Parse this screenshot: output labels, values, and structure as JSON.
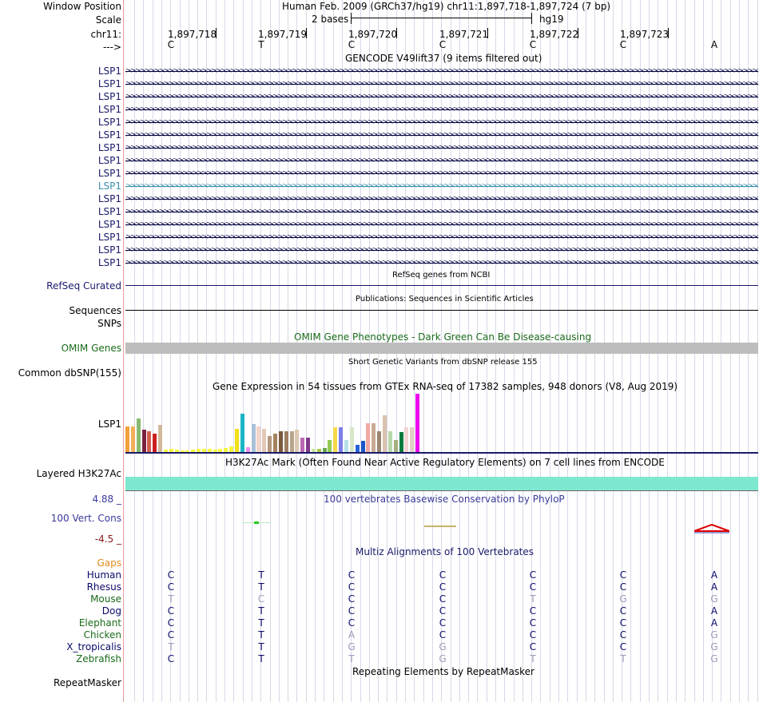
{
  "header": {
    "window_position_label": "Window Position",
    "assembly_text": "Human Feb. 2009 (GRCh37/hg19)   chr11:1,897,718-1,897,724 (7 bp)",
    "scale_label": "Scale",
    "scale_text": "2 bases",
    "scale_db": "hg19",
    "chrom_label": "chr11:",
    "coords": [
      "1,897,718",
      "1,897,719",
      "1,897,720",
      "1,897,721",
      "1,897,722",
      "1,897,723"
    ],
    "strand_label": "--->",
    "bases": [
      "C",
      "T",
      "C",
      "C",
      "C",
      "C",
      "A"
    ]
  },
  "gencode": {
    "title": "GENCODE V49lift37 (9 items filtered out)",
    "rows": [
      "LSP1",
      "LSP1",
      "LSP1",
      "LSP1",
      "LSP1",
      "LSP1",
      "LSP1",
      "LSP1",
      "LSP1",
      "LSP1",
      "LSP1",
      "LSP1",
      "LSP1",
      "LSP1",
      "LSP1",
      "LSP1"
    ],
    "highlight_index": 9,
    "highlight_color": "#3a8fb0"
  },
  "refseq": {
    "title": "RefSeq genes from NCBI",
    "label": "RefSeq Curated"
  },
  "publications": {
    "title": "Publications: Sequences in Scientific Articles",
    "label1": "Sequences",
    "label2": "SNPs"
  },
  "omim": {
    "title": "OMIM Gene Phenotypes - Dark Green Can Be Disease-causing",
    "label": "OMIM Genes",
    "color": "#1a6b1a"
  },
  "dbsnp": {
    "title": "Short Genetic Variants from dbSNP release 155",
    "label": "Common dbSNP(155)"
  },
  "gtex": {
    "title": "Gene Expression in 54 tissues from GTEx RNA-seq of 17382 samples, 948 donors (V8, Aug 2019)",
    "label": "LSP1",
    "values": [
      44,
      44,
      57,
      38,
      36,
      32,
      47,
      4,
      5,
      4,
      3,
      3,
      4,
      5,
      5,
      5,
      4,
      6,
      7,
      9,
      40,
      66,
      8,
      48,
      44,
      40,
      27,
      32,
      36,
      36,
      36,
      38,
      25,
      24,
      5,
      5,
      7,
      20,
      42,
      42,
      21,
      43,
      12,
      19,
      49,
      49,
      35,
      63,
      35,
      21,
      34,
      42,
      42,
      100
    ],
    "colors": [
      "#f3a13a",
      "#f2b05a",
      "#8ab971",
      "#7a2340",
      "#d25f4f",
      "#cc1f1f",
      "#d2b99c",
      "#f5f542",
      "#f5f542",
      "#f5f542",
      "#f5f542",
      "#f5f542",
      "#f5f542",
      "#f5f542",
      "#f5f542",
      "#f5f542",
      "#f5f542",
      "#f5f542",
      "#f5f542",
      "#f5f542",
      "#f2e01a",
      "#1ab5c5",
      "#ef8ff0",
      "#a9c1d8",
      "#f3d5c8",
      "#e4c8b4",
      "#b4977c",
      "#a4825f",
      "#7b5a3c",
      "#9d7d5e",
      "#b9a48c",
      "#dcc7b1",
      "#bb68b4",
      "#803a8c",
      "#c7e8a0",
      "#a8c94b",
      "#6aa84f",
      "#93cc52",
      "#f7d84a",
      "#7d7de8",
      "#b3e0e8",
      "#d7e7c7",
      "#2661d6",
      "#1c57c8",
      "#f1a9a3",
      "#c8ab93",
      "#9b8672",
      "#dbc2ae",
      "#b7d7a8",
      "#a4b07e",
      "#0a7a3c",
      "#f3d3d3",
      "#e3d0c5",
      "#ee00ee"
    ]
  },
  "h3k27ac": {
    "title": "H3K27Ac Mark (Often Found Near Active Regulatory Elements) on 7 cell lines from ENCODE",
    "label": "Layered H3K27Ac",
    "color": "#7ee8cf"
  },
  "phylop": {
    "title": "100 vertebrates Basewise Conservation by PhyloP",
    "label": "100 Vert. Cons",
    "max_label": "4.88 _",
    "min_label": "-4.5 _"
  },
  "multiz": {
    "title": "Multiz Alignments of 100 Vertebrates",
    "gaps_label": "Gaps",
    "species": [
      {
        "name": "Human",
        "color": "#0a0a6a",
        "bases": [
          "C",
          "T",
          "C",
          "C",
          "C",
          "C",
          "A"
        ],
        "gray": [
          false,
          false,
          false,
          false,
          false,
          false,
          false
        ]
      },
      {
        "name": "Rhesus",
        "color": "#0a0a6a",
        "bases": [
          "C",
          "T",
          "C",
          "C",
          "C",
          "C",
          "A"
        ],
        "gray": [
          false,
          false,
          false,
          false,
          false,
          false,
          false
        ]
      },
      {
        "name": "Mouse",
        "color": "#1a6b1a",
        "bases": [
          "T",
          "C",
          "C",
          "C",
          "T",
          "G",
          "G"
        ],
        "gray": [
          true,
          true,
          false,
          false,
          true,
          true,
          true
        ]
      },
      {
        "name": "Dog",
        "color": "#0a0a6a",
        "bases": [
          "C",
          "T",
          "C",
          "C",
          "C",
          "C",
          "A"
        ],
        "gray": [
          false,
          false,
          false,
          false,
          false,
          false,
          false
        ]
      },
      {
        "name": "Elephant",
        "color": "#1a6b1a",
        "bases": [
          "C",
          "T",
          "C",
          "C",
          "C",
          "C",
          "A"
        ],
        "gray": [
          false,
          false,
          false,
          false,
          false,
          false,
          false
        ]
      },
      {
        "name": "Chicken",
        "color": "#1a6b1a",
        "bases": [
          "C",
          "T",
          "A",
          "C",
          "C",
          "C",
          "G"
        ],
        "gray": [
          false,
          false,
          true,
          false,
          false,
          false,
          true
        ]
      },
      {
        "name": "X_tropicalis",
        "color": "#0a0a6a",
        "bases": [
          "T",
          "T",
          "G",
          "G",
          "C",
          "C",
          "G"
        ],
        "gray": [
          true,
          false,
          true,
          true,
          false,
          false,
          true
        ]
      },
      {
        "name": "Zebrafish",
        "color": "#1a6b1a",
        "bases": [
          "C",
          "T",
          "T",
          "G",
          "T",
          "T",
          "G"
        ],
        "gray": [
          false,
          false,
          true,
          true,
          true,
          true,
          true
        ]
      }
    ]
  },
  "repeatmasker": {
    "title": "Repeating Elements by RepeatMasker",
    "label": "RepeatMasker"
  }
}
